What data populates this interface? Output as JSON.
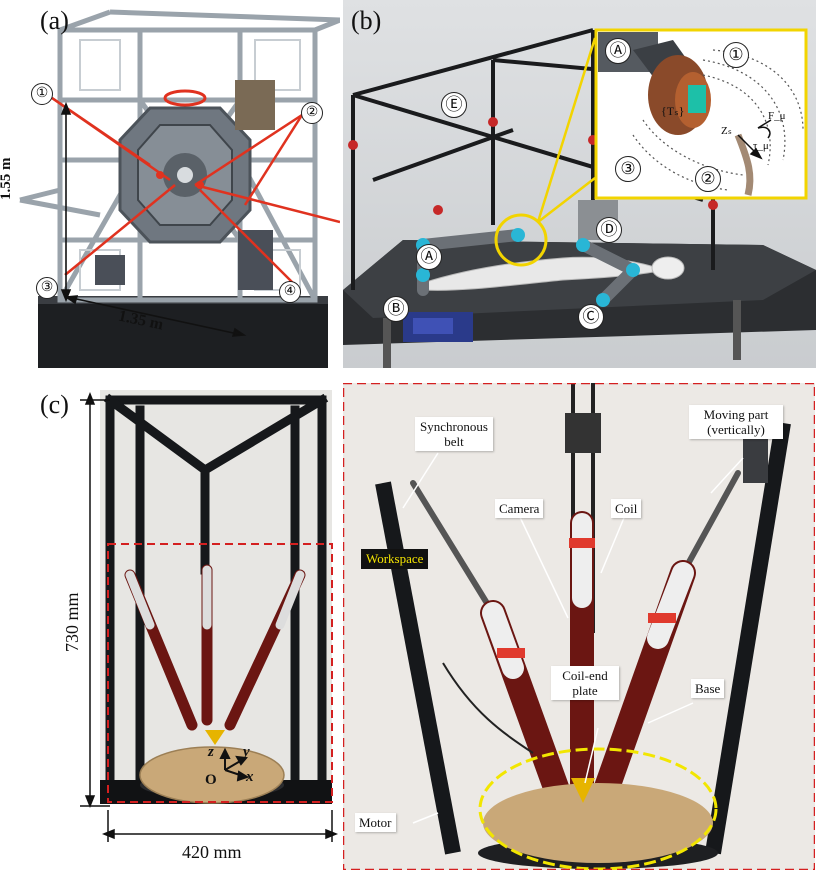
{
  "panels": {
    "a": {
      "label": "(a)",
      "height_label": "1.55 m",
      "width_label": "1.35 m",
      "markers": [
        "①",
        "②",
        "③",
        "④"
      ]
    },
    "b": {
      "label": "(b)",
      "markers": [
        "Ⓐ",
        "Ⓑ",
        "Ⓒ",
        "Ⓓ",
        "Ⓔ"
      ],
      "inset": {
        "markers": [
          "Ⓐ",
          "①",
          "②",
          "③"
        ],
        "frame_label": "{Tₛ}",
        "axis_label": "Zₛ",
        "force_label": "F_μ",
        "torque_label": "τ_μ"
      }
    },
    "c": {
      "label": "(c)",
      "height_label": "730 mm",
      "width_label": "420 mm",
      "axes": {
        "z": "z",
        "y": "y",
        "x": "x",
        "origin": "O"
      },
      "callouts": {
        "synchronous_belt": "Synchronous belt",
        "camera": "Camera",
        "coil": "Coil",
        "moving_part": "Moving part (vertically)",
        "workspace": "Workspace",
        "coil_end_plate": "Coil-end plate",
        "base": "Base",
        "motor": "Motor"
      }
    }
  },
  "colors": {
    "red_marker": "#e0321f",
    "dashed_frame": "#d42020",
    "inset_frame": "#f2d400",
    "workspace_outline": "#f2e600"
  }
}
